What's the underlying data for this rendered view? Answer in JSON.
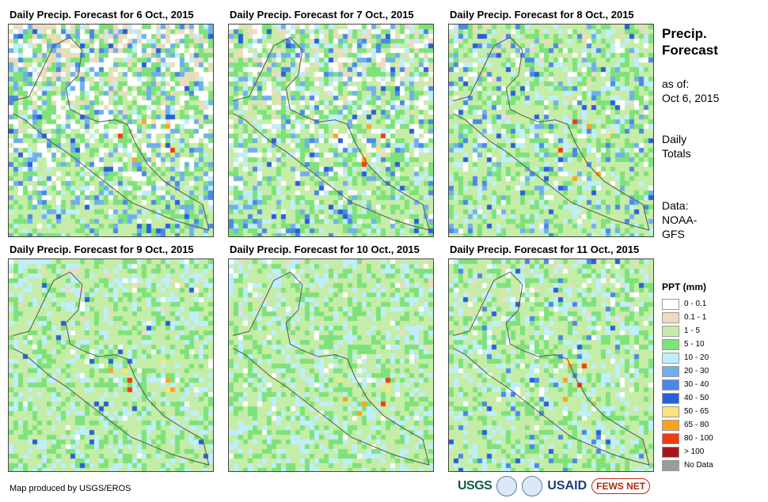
{
  "panels": [
    {
      "title": "Daily Precip. Forecast for 6 Oct., 2015"
    },
    {
      "title": "Daily Precip. Forecast for 7 Oct., 2015"
    },
    {
      "title": "Daily Precip. Forecast for 8 Oct., 2015"
    },
    {
      "title": "Daily Precip. Forecast for 9 Oct., 2015"
    },
    {
      "title": "Daily Precip. Forecast for 10 Oct., 2015"
    },
    {
      "title": "Daily Precip. Forecast for 11 Oct., 2015"
    }
  ],
  "sidebar": {
    "title_line1": "Precip.",
    "title_line2": "Forecast",
    "asof_line1": "as of:",
    "asof_line2": "Oct 6, 2015",
    "daily_line1": "Daily",
    "daily_line2": "Totals",
    "data_line1": "Data:",
    "data_line2": "NOAA-",
    "data_line3": "GFS"
  },
  "legend": {
    "title": "PPT (mm)",
    "items": [
      {
        "label": "0 - 0.1",
        "color": "#ffffff"
      },
      {
        "label": "0.1 - 1",
        "color": "#ebdcbb"
      },
      {
        "label": "1 - 5",
        "color": "#c5eda8"
      },
      {
        "label": "5 - 10",
        "color": "#7ee27a"
      },
      {
        "label": "10 - 20",
        "color": "#bfeefd"
      },
      {
        "label": "20 - 30",
        "color": "#6fb0ec"
      },
      {
        "label": "30 - 40",
        "color": "#4a89e6"
      },
      {
        "label": "40 - 50",
        "color": "#2a5fd8"
      },
      {
        "label": "50 - 65",
        "color": "#ffe27d"
      },
      {
        "label": "65 - 80",
        "color": "#fda21f"
      },
      {
        "label": "80 - 100",
        "color": "#f63a0f"
      },
      {
        "label": "> 100",
        "color": "#a8161a"
      },
      {
        "label": "No Data",
        "color": "#9b9b9b"
      }
    ]
  },
  "footer": {
    "credit": "Map produced by USGS/EROS",
    "logo_usgs": "USGS",
    "logo_usaid": "USAID",
    "logo_fews": "FEWS NET"
  }
}
